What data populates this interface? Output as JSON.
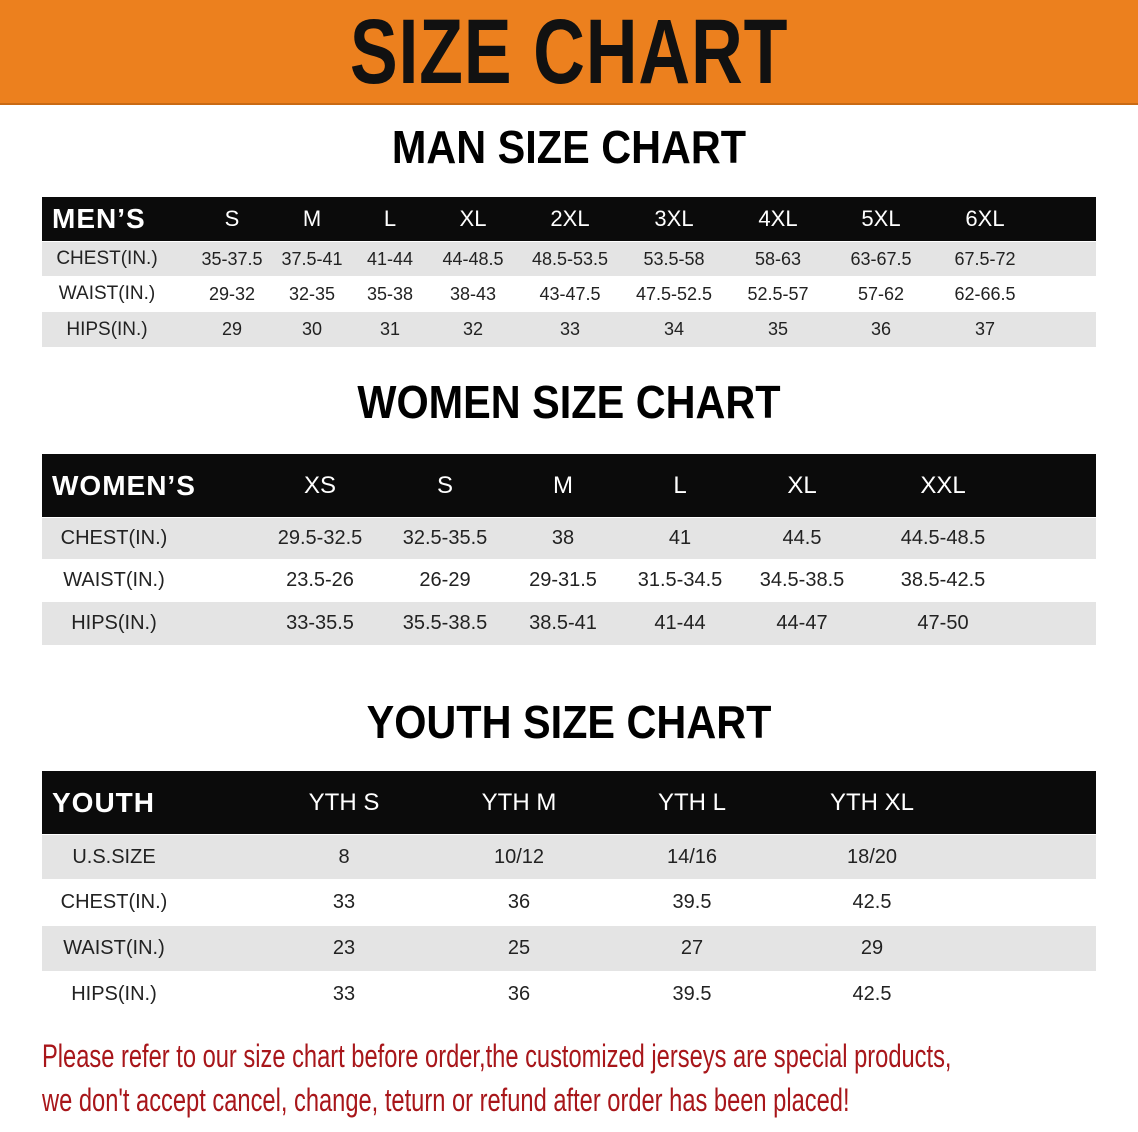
{
  "banner": {
    "title": "SIZE CHART",
    "color": "#ec801e"
  },
  "men": {
    "title": "MAN SIZE CHART",
    "header_label": "MEN’S",
    "sizes": [
      "S",
      "M",
      "L",
      "XL",
      "2XL",
      "3XL",
      "4XL",
      "5XL",
      "6XL"
    ],
    "rows": [
      {
        "label": "CHEST(IN.)",
        "values": [
          "35-37.5",
          "37.5-41",
          "41-44",
          "44-48.5",
          "48.5-53.5",
          "53.5-58",
          "58-63",
          "63-67.5",
          "67.5-72"
        ]
      },
      {
        "label": "WAIST(IN.)",
        "values": [
          "29-32",
          "32-35",
          "35-38",
          "38-43",
          "43-47.5",
          "47.5-52.5",
          "52.5-57",
          "57-62",
          "62-66.5"
        ]
      },
      {
        "label": "HIPS(IN.)",
        "values": [
          "29",
          "30",
          "31",
          "32",
          "33",
          "34",
          "35",
          "36",
          "37"
        ]
      }
    ]
  },
  "women": {
    "title": "WOMEN SIZE CHART",
    "header_label": "WOMEN’S",
    "sizes": [
      "XS",
      "S",
      "M",
      "L",
      "XL",
      "XXL"
    ],
    "rows": [
      {
        "label": "CHEST(IN.)",
        "values": [
          "29.5-32.5",
          "32.5-35.5",
          "38",
          "41",
          "44.5",
          "44.5-48.5"
        ]
      },
      {
        "label": "WAIST(IN.)",
        "values": [
          "23.5-26",
          "26-29",
          "29-31.5",
          "31.5-34.5",
          "34.5-38.5",
          "38.5-42.5"
        ]
      },
      {
        "label": "HIPS(IN.)",
        "values": [
          "33-35.5",
          "35.5-38.5",
          "38.5-41",
          "41-44",
          "44-47",
          "47-50"
        ]
      }
    ]
  },
  "youth": {
    "title": "YOUTH SIZE CHART",
    "header_label": "YOUTH",
    "sizes": [
      "YTH S",
      "YTH M",
      "YTH L",
      "YTH XL"
    ],
    "rows": [
      {
        "label": "U.S.SIZE",
        "values": [
          "8",
          "10/12",
          "14/16",
          "18/20"
        ]
      },
      {
        "label": "CHEST(IN.)",
        "values": [
          "33",
          "36",
          "39.5",
          "42.5"
        ]
      },
      {
        "label": "WAIST(IN.)",
        "values": [
          "23",
          "25",
          "27",
          "29"
        ]
      },
      {
        "label": "HIPS(IN.)",
        "values": [
          "33",
          "36",
          "39.5",
          "42.5"
        ]
      }
    ]
  },
  "notice": {
    "line1": "Please refer to our size chart before order,the customized jerseys are special products,",
    "line2": "we don't accept cancel, change, teturn or refund after order has been placed!",
    "color": "#a8161a"
  }
}
